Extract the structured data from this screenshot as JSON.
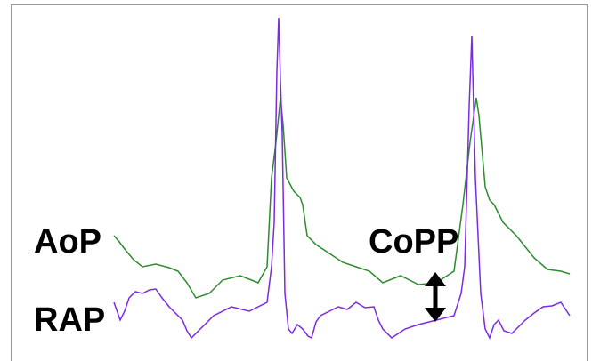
{
  "labels": {
    "aop": "AoP",
    "rap": "RAP",
    "copp": "CoPP"
  }
}
